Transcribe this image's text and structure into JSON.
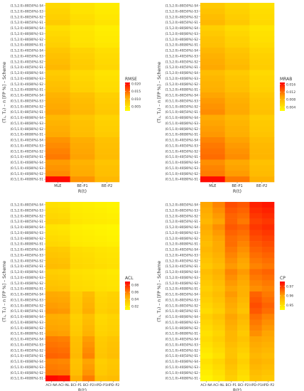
{
  "chart_data": [
    {
      "type": "heatmap",
      "xlabel": "R(t)",
      "ylabel": "(T₁, T₂) – n [FP %] – Scheme",
      "legend_title": "RMSE",
      "legend_ticks": [
        "0.020",
        "0.015",
        "0.010",
        "0.005"
      ],
      "legend_range": [
        0.002,
        0.021
      ],
      "x": [
        "MLE",
        "BE–P1",
        "BE–P2"
      ],
      "y": [
        "(1.5,2.0)–80[50%]–S4",
        "(1.5,2.0)–80[50%]–S3",
        "(1.5,2.0)–80[50%]–S2",
        "(1.5,2.0)–80[50%]–S1",
        "(1.5,2.0)–80[80%]–S4",
        "(1.5,2.0)–80[80%]–S3",
        "(1.5,2.0)–80[80%]–S2",
        "(1.5,2.0)–80[80%]–S1",
        "(1.5,2.0)–40[50%]–S4",
        "(1.5,2.0)–40[50%]–S3",
        "(1.5,2.0)–40[50%]–S2",
        "(1.5,2.0)–40[50%]–S1",
        "(1.5,2.0)–40[80%]–S4",
        "(1.5,2.0)–40[80%]–S3",
        "(1.5,2.0)–40[80%]–S2",
        "(1.5,2.0)–40[80%]–S1",
        "(0.5,1.0)–80[50%]–S4",
        "(0.5,1.0)–80[50%]–S3",
        "(0.5,1.0)–80[50%]–S2",
        "(0.5,1.0)–80[50%]–S1",
        "(0.5,1.0)–80[80%]–S4",
        "(0.5,1.0)–80[80%]–S3",
        "(0.5,1.0)–80[80%]–S2",
        "(0.5,1.0)–80[80%]–S1",
        "(0.5,1.0)–40[50%]–S4",
        "(0.5,1.0)–40[50%]–S3",
        "(0.5,1.0)–40[50%]–S2",
        "(0.5,1.0)–40[50%]–S1",
        "(0.5,1.0)–40[80%]–S4",
        "(0.5,1.0)–40[80%]–S3",
        "(0.5,1.0)–40[80%]–S2",
        "(0.5,1.0)–40[80%]–S1"
      ],
      "values": [
        [
          0.006,
          0.0048,
          0.004
        ],
        [
          0.0065,
          0.005,
          0.0042
        ],
        [
          0.007,
          0.0055,
          0.0045
        ],
        [
          0.0075,
          0.0058,
          0.0048
        ],
        [
          0.0055,
          0.0045,
          0.0038
        ],
        [
          0.006,
          0.0048,
          0.004
        ],
        [
          0.0065,
          0.005,
          0.0042
        ],
        [
          0.007,
          0.0053,
          0.0045
        ],
        [
          0.008,
          0.0065,
          0.0055
        ],
        [
          0.0085,
          0.007,
          0.0058
        ],
        [
          0.009,
          0.0073,
          0.006
        ],
        [
          0.0095,
          0.0075,
          0.0063
        ],
        [
          0.0075,
          0.006,
          0.005
        ],
        [
          0.008,
          0.0063,
          0.0053
        ],
        [
          0.0085,
          0.0068,
          0.0056
        ],
        [
          0.009,
          0.007,
          0.0058
        ],
        [
          0.01,
          0.0085,
          0.007
        ],
        [
          0.0105,
          0.009,
          0.0073
        ],
        [
          0.011,
          0.0093,
          0.0076
        ],
        [
          0.0115,
          0.0095,
          0.0078
        ],
        [
          0.0095,
          0.008,
          0.0066
        ],
        [
          0.01,
          0.0085,
          0.007
        ],
        [
          0.0105,
          0.0088,
          0.0072
        ],
        [
          0.011,
          0.009,
          0.0075
        ],
        [
          0.0125,
          0.0105,
          0.0085
        ],
        [
          0.013,
          0.011,
          0.0088
        ],
        [
          0.0135,
          0.0113,
          0.009
        ],
        [
          0.014,
          0.0116,
          0.0092
        ],
        [
          0.012,
          0.01,
          0.0082
        ],
        [
          0.0125,
          0.0105,
          0.0086
        ],
        [
          0.013,
          0.0108,
          0.0088
        ],
        [
          0.0205,
          0.0125,
          0.0095
        ]
      ]
    },
    {
      "type": "heatmap",
      "xlabel": "R(t)",
      "ylabel": "(T₁, T₂) – n [FP %] – Scheme",
      "legend_title": "MRAB",
      "legend_ticks": [
        "0.016",
        "0.012",
        "0.008",
        "0.004"
      ],
      "legend_range": [
        0.002,
        0.017
      ],
      "x": [
        "MLE",
        "BE–P1",
        "BE–P2"
      ],
      "y": [
        "(1.5,2.0)–80[50%]–S4",
        "(1.5,2.0)–80[50%]–S3",
        "(1.5,2.0)–80[50%]–S2",
        "(1.5,2.0)–80[50%]–S1",
        "(1.5,2.0)–80[80%]–S4",
        "(1.5,2.0)–80[80%]–S3",
        "(1.5,2.0)–80[80%]–S2",
        "(1.5,2.0)–80[80%]–S1",
        "(1.5,2.0)–40[50%]–S4",
        "(1.5,2.0)–40[50%]–S3",
        "(1.5,2.0)–40[50%]–S2",
        "(1.5,2.0)–40[50%]–S1",
        "(1.5,2.0)–40[80%]–S4",
        "(1.5,2.0)–40[80%]–S3",
        "(1.5,2.0)–40[80%]–S2",
        "(1.5,2.0)–40[80%]–S1",
        "(0.5,1.0)–80[50%]–S4",
        "(0.5,1.0)–80[50%]–S3",
        "(0.5,1.0)–80[50%]–S2",
        "(0.5,1.0)–80[50%]–S1",
        "(0.5,1.0)–80[80%]–S4",
        "(0.5,1.0)–80[80%]–S3",
        "(0.5,1.0)–80[80%]–S2",
        "(0.5,1.0)–80[80%]–S1",
        "(0.5,1.0)–40[50%]–S4",
        "(0.5,1.0)–40[50%]–S3",
        "(0.5,1.0)–40[50%]–S2",
        "(0.5,1.0)–40[50%]–S1",
        "(0.5,1.0)–40[80%]–S4",
        "(0.5,1.0)–40[80%]–S3",
        "(0.5,1.0)–40[80%]–S2",
        "(0.5,1.0)–40[80%]–S1"
      ],
      "values": [
        [
          0.0065,
          0.0055,
          0.0045
        ],
        [
          0.007,
          0.0058,
          0.0048
        ],
        [
          0.0075,
          0.0062,
          0.005
        ],
        [
          0.0078,
          0.0065,
          0.0052
        ],
        [
          0.006,
          0.005,
          0.0042
        ],
        [
          0.0065,
          0.0054,
          0.0045
        ],
        [
          0.007,
          0.0058,
          0.0047
        ],
        [
          0.0072,
          0.006,
          0.005
        ],
        [
          0.008,
          0.0068,
          0.0055
        ],
        [
          0.0085,
          0.0072,
          0.0058
        ],
        [
          0.0088,
          0.0075,
          0.006
        ],
        [
          0.0092,
          0.0078,
          0.0062
        ],
        [
          0.0075,
          0.0064,
          0.0052
        ],
        [
          0.008,
          0.0068,
          0.0055
        ],
        [
          0.0083,
          0.0071,
          0.0057
        ],
        [
          0.0086,
          0.0073,
          0.0059
        ],
        [
          0.0095,
          0.0082,
          0.0065
        ],
        [
          0.01,
          0.0086,
          0.0068
        ],
        [
          0.0103,
          0.0089,
          0.007
        ],
        [
          0.0106,
          0.0091,
          0.0072
        ],
        [
          0.009,
          0.0078,
          0.0062
        ],
        [
          0.0095,
          0.0082,
          0.0065
        ],
        [
          0.0098,
          0.0085,
          0.0067
        ],
        [
          0.0101,
          0.0087,
          0.0069
        ],
        [
          0.011,
          0.0096,
          0.0075
        ],
        [
          0.0115,
          0.01,
          0.0078
        ],
        [
          0.0118,
          0.0103,
          0.008
        ],
        [
          0.0121,
          0.0106,
          0.0082
        ],
        [
          0.0105,
          0.0092,
          0.0072
        ],
        [
          0.011,
          0.0096,
          0.0075
        ],
        [
          0.0113,
          0.0099,
          0.0077
        ],
        [
          0.0165,
          0.0115,
          0.0085
        ]
      ]
    },
    {
      "type": "heatmap",
      "xlabel": "R(t)",
      "ylabel": "(T₁, T₂) – n [FP %] – Scheme",
      "legend_title": "ACL",
      "legend_ticks": [
        "0.08",
        "0.06",
        "0.04",
        "0.02"
      ],
      "legend_range": [
        0.01,
        0.09
      ],
      "x": [
        "ACI–NA",
        "ACI–NL",
        "BCI–P1",
        "BCI–P2",
        "HPD–P1",
        "HPD–P2"
      ],
      "y": [
        "(1.5,2.0)–80[50%]–S4",
        "(1.5,2.0)–80[50%]–S3",
        "(1.5,2.0)–80[50%]–S2",
        "(1.5,2.0)–80[50%]–S1",
        "(1.5,2.0)–80[80%]–S4",
        "(1.5,2.0)–80[80%]–S3",
        "(1.5,2.0)–80[80%]–S2",
        "(1.5,2.0)–80[80%]–S1",
        "(1.5,2.0)–40[50%]–S4",
        "(1.5,2.0)–40[50%]–S3",
        "(1.5,2.0)–40[50%]–S2",
        "(1.5,2.0)–40[50%]–S1",
        "(1.5,2.0)–40[80%]–S4",
        "(1.5,2.0)–40[80%]–S3",
        "(1.5,2.0)–40[80%]–S2",
        "(1.5,2.0)–40[80%]–S1",
        "(0.5,1.0)–80[50%]–S4",
        "(0.5,1.0)–80[50%]–S3",
        "(0.5,1.0)–80[50%]–S2",
        "(0.5,1.0)–80[50%]–S1",
        "(0.5,1.0)–80[80%]–S4",
        "(0.5,1.0)–80[80%]–S3",
        "(0.5,1.0)–80[80%]–S2",
        "(0.5,1.0)–80[80%]–S1",
        "(0.5,1.0)–40[50%]–S4",
        "(0.5,1.0)–40[50%]–S3",
        "(0.5,1.0)–40[50%]–S2",
        "(0.5,1.0)–40[50%]–S1",
        "(0.5,1.0)–40[80%]–S4",
        "(0.5,1.0)–40[80%]–S3",
        "(0.5,1.0)–40[80%]–S2",
        "(0.5,1.0)–40[80%]–S1"
      ],
      "values": [
        [
          0.024,
          0.023,
          0.018,
          0.017,
          0.016,
          0.015
        ],
        [
          0.026,
          0.025,
          0.019,
          0.018,
          0.017,
          0.016
        ],
        [
          0.028,
          0.027,
          0.02,
          0.019,
          0.018,
          0.017
        ],
        [
          0.03,
          0.029,
          0.021,
          0.02,
          0.019,
          0.018
        ],
        [
          0.022,
          0.021,
          0.017,
          0.016,
          0.015,
          0.014
        ],
        [
          0.024,
          0.023,
          0.018,
          0.017,
          0.016,
          0.015
        ],
        [
          0.026,
          0.025,
          0.019,
          0.018,
          0.017,
          0.016
        ],
        [
          0.028,
          0.027,
          0.02,
          0.019,
          0.018,
          0.017
        ],
        [
          0.034,
          0.033,
          0.025,
          0.024,
          0.022,
          0.021
        ],
        [
          0.036,
          0.035,
          0.026,
          0.025,
          0.023,
          0.022
        ],
        [
          0.038,
          0.037,
          0.027,
          0.026,
          0.024,
          0.023
        ],
        [
          0.04,
          0.039,
          0.028,
          0.027,
          0.025,
          0.024
        ],
        [
          0.032,
          0.031,
          0.024,
          0.023,
          0.021,
          0.02
        ],
        [
          0.034,
          0.033,
          0.025,
          0.024,
          0.022,
          0.021
        ],
        [
          0.036,
          0.035,
          0.026,
          0.025,
          0.023,
          0.022
        ],
        [
          0.038,
          0.037,
          0.027,
          0.026,
          0.024,
          0.023
        ],
        [
          0.048,
          0.047,
          0.032,
          0.04,
          0.028,
          0.03
        ],
        [
          0.05,
          0.049,
          0.033,
          0.042,
          0.029,
          0.031
        ],
        [
          0.052,
          0.051,
          0.034,
          0.044,
          0.03,
          0.032
        ],
        [
          0.054,
          0.053,
          0.035,
          0.046,
          0.031,
          0.033
        ],
        [
          0.046,
          0.045,
          0.031,
          0.038,
          0.027,
          0.029
        ],
        [
          0.048,
          0.047,
          0.032,
          0.04,
          0.028,
          0.03
        ],
        [
          0.05,
          0.049,
          0.033,
          0.042,
          0.029,
          0.031
        ],
        [
          0.052,
          0.051,
          0.034,
          0.044,
          0.03,
          0.032
        ],
        [
          0.06,
          0.059,
          0.038,
          0.052,
          0.033,
          0.036
        ],
        [
          0.062,
          0.061,
          0.039,
          0.054,
          0.034,
          0.037
        ],
        [
          0.064,
          0.063,
          0.04,
          0.056,
          0.035,
          0.038
        ],
        [
          0.066,
          0.065,
          0.041,
          0.058,
          0.036,
          0.039
        ],
        [
          0.058,
          0.057,
          0.037,
          0.05,
          0.032,
          0.035
        ],
        [
          0.06,
          0.059,
          0.038,
          0.052,
          0.033,
          0.036
        ],
        [
          0.062,
          0.061,
          0.039,
          0.054,
          0.034,
          0.037
        ],
        [
          0.088,
          0.086,
          0.045,
          0.06,
          0.038,
          0.04
        ]
      ]
    },
    {
      "type": "heatmap",
      "xlabel": "R(t)",
      "ylabel": "(T₁, T₂) – n [FP %] – Scheme",
      "legend_title": "CP",
      "legend_ticks": [
        "0.97",
        "0.96",
        "0.95"
      ],
      "legend_range": [
        0.945,
        0.975
      ],
      "x": [
        "ACI–NA",
        "ACI–NL",
        "BCI–P1",
        "BCI–P2",
        "HPD–P1",
        "HPD–P2"
      ],
      "y": [
        "(1.5,2.0)–80[50%]–S4",
        "(1.5,2.0)–80[50%]–S3",
        "(1.5,2.0)–80[50%]–S2",
        "(1.5,2.0)–80[50%]–S1",
        "(1.5,2.0)–80[80%]–S4",
        "(1.5,2.0)–80[80%]–S3",
        "(1.5,2.0)–80[80%]–S2",
        "(1.5,2.0)–80[80%]–S1",
        "(1.5,2.0)–40[50%]–S4",
        "(1.5,2.0)–40[50%]–S3",
        "(1.5,2.0)–40[50%]–S2",
        "(1.5,2.0)–40[50%]–S1",
        "(1.5,2.0)–40[80%]–S4",
        "(1.5,2.0)–40[80%]–S3",
        "(1.5,2.0)–40[80%]–S2",
        "(1.5,2.0)–40[80%]–S1",
        "(0.5,1.0)–80[50%]–S4",
        "(0.5,1.0)–80[50%]–S3",
        "(0.5,1.0)–80[50%]–S2",
        "(0.5,1.0)–80[50%]–S1",
        "(0.5,1.0)–80[80%]–S4",
        "(0.5,1.0)–80[80%]–S3",
        "(0.5,1.0)–80[80%]–S2",
        "(0.5,1.0)–80[80%]–S1",
        "(0.5,1.0)–40[50%]–S4",
        "(0.5,1.0)–40[50%]–S3",
        "(0.5,1.0)–40[50%]–S2",
        "(0.5,1.0)–40[50%]–S1",
        "(0.5,1.0)–40[80%]–S4",
        "(0.5,1.0)–40[80%]–S3",
        "(0.5,1.0)–40[80%]–S2",
        "(0.5,1.0)–40[80%]–S1"
      ],
      "values": [
        [
          0.96,
          0.963,
          0.968,
          0.967,
          0.972,
          0.973
        ],
        [
          0.959,
          0.962,
          0.967,
          0.966,
          0.971,
          0.972
        ],
        [
          0.958,
          0.961,
          0.966,
          0.965,
          0.97,
          0.971
        ],
        [
          0.957,
          0.96,
          0.966,
          0.964,
          0.969,
          0.97
        ],
        [
          0.959,
          0.962,
          0.967,
          0.966,
          0.97,
          0.971
        ],
        [
          0.958,
          0.961,
          0.966,
          0.965,
          0.969,
          0.97
        ],
        [
          0.957,
          0.96,
          0.965,
          0.964,
          0.968,
          0.969
        ],
        [
          0.956,
          0.959,
          0.965,
          0.963,
          0.967,
          0.968
        ],
        [
          0.957,
          0.959,
          0.964,
          0.962,
          0.966,
          0.967
        ],
        [
          0.956,
          0.958,
          0.963,
          0.961,
          0.965,
          0.966
        ],
        [
          0.955,
          0.957,
          0.962,
          0.96,
          0.964,
          0.965
        ],
        [
          0.954,
          0.956,
          0.961,
          0.959,
          0.963,
          0.964
        ],
        [
          0.956,
          0.958,
          0.963,
          0.961,
          0.965,
          0.966
        ],
        [
          0.955,
          0.957,
          0.962,
          0.96,
          0.964,
          0.965
        ],
        [
          0.954,
          0.956,
          0.961,
          0.959,
          0.963,
          0.964
        ],
        [
          0.953,
          0.955,
          0.96,
          0.958,
          0.962,
          0.963
        ],
        [
          0.954,
          0.956,
          0.961,
          0.958,
          0.966,
          0.964
        ],
        [
          0.953,
          0.955,
          0.96,
          0.957,
          0.967,
          0.965
        ],
        [
          0.952,
          0.954,
          0.959,
          0.956,
          0.968,
          0.966
        ],
        [
          0.951,
          0.953,
          0.958,
          0.955,
          0.967,
          0.965
        ],
        [
          0.953,
          0.955,
          0.96,
          0.957,
          0.965,
          0.963
        ],
        [
          0.952,
          0.954,
          0.959,
          0.956,
          0.964,
          0.962
        ],
        [
          0.951,
          0.953,
          0.958,
          0.955,
          0.963,
          0.961
        ],
        [
          0.95,
          0.952,
          0.957,
          0.954,
          0.962,
          0.96
        ],
        [
          0.951,
          0.953,
          0.957,
          0.955,
          0.96,
          0.959
        ],
        [
          0.95,
          0.952,
          0.956,
          0.954,
          0.959,
          0.958
        ],
        [
          0.949,
          0.951,
          0.955,
          0.953,
          0.958,
          0.957
        ],
        [
          0.948,
          0.95,
          0.955,
          0.952,
          0.957,
          0.956
        ],
        [
          0.95,
          0.952,
          0.956,
          0.953,
          0.958,
          0.957
        ],
        [
          0.949,
          0.951,
          0.955,
          0.952,
          0.957,
          0.956
        ],
        [
          0.948,
          0.95,
          0.954,
          0.951,
          0.956,
          0.955
        ],
        [
          0.947,
          0.949,
          0.953,
          0.95,
          0.955,
          0.954
        ]
      ]
    }
  ]
}
